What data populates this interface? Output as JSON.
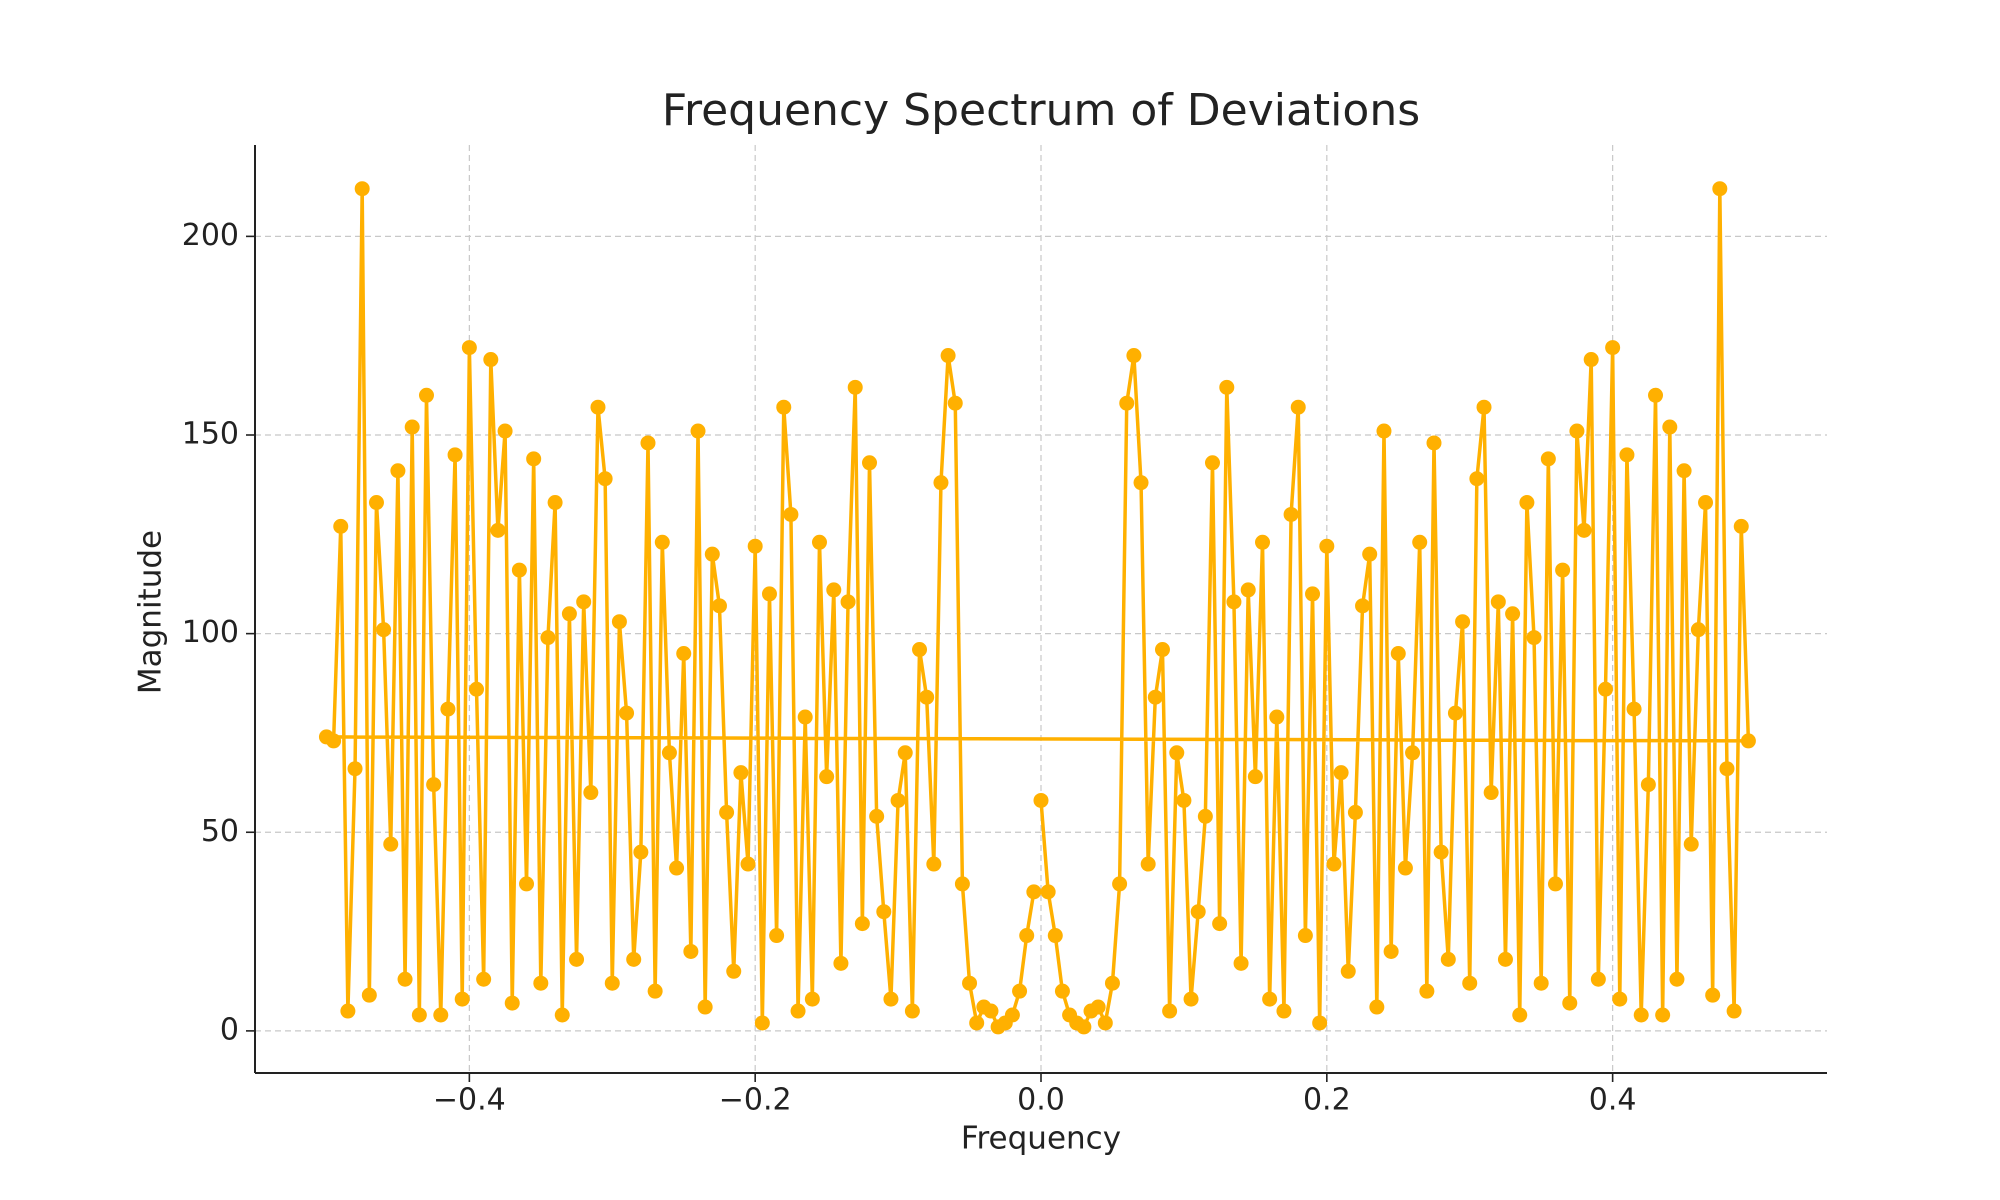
{
  "chart_data": {
    "type": "line",
    "title": "Frequency Spectrum of Deviations",
    "x_label": "Frequency",
    "y_label": "Magnitude",
    "series": [
      {
        "name": "Magnitude",
        "color": "#ffb000",
        "x": [
          0,
          0.005,
          0.01,
          0.015,
          0.02,
          0.025,
          0.03,
          0.035,
          0.04,
          0.045,
          0.05,
          0.055,
          0.06,
          0.065,
          0.07,
          0.075,
          0.08,
          0.085,
          0.09,
          0.095,
          0.1,
          0.105,
          0.11,
          0.115,
          0.12,
          0.125,
          0.13,
          0.135,
          0.14,
          0.145,
          0.15,
          0.155,
          0.16,
          0.165,
          0.17,
          0.175,
          0.18,
          0.185,
          0.19,
          0.195,
          0.2,
          0.205,
          0.21,
          0.215,
          0.22,
          0.225,
          0.23,
          0.235,
          0.24,
          0.245,
          0.25,
          0.255,
          0.26,
          0.265,
          0.27,
          0.275,
          0.28,
          0.285,
          0.29,
          0.295,
          0.3,
          0.305,
          0.31,
          0.315,
          0.32,
          0.325,
          0.33,
          0.335,
          0.34,
          0.345,
          0.35,
          0.355,
          0.36,
          0.365,
          0.37,
          0.375,
          0.38,
          0.385,
          0.39,
          0.395,
          0.4,
          0.405,
          0.41,
          0.415,
          0.42,
          0.425,
          0.43,
          0.435,
          0.44,
          0.445,
          0.45,
          0.455,
          0.46,
          0.465,
          0.47,
          0.475,
          0.48,
          0.485,
          0.49,
          0.495,
          -0.5,
          -0.495,
          -0.49,
          -0.485,
          -0.48,
          -0.475,
          -0.47,
          -0.465,
          -0.46,
          -0.455,
          -0.45,
          -0.445,
          -0.44,
          -0.435,
          -0.43,
          -0.425,
          -0.42,
          -0.415,
          -0.41,
          -0.405,
          -0.4,
          -0.395,
          -0.39,
          -0.385,
          -0.38,
          -0.375,
          -0.37,
          -0.365,
          -0.36,
          -0.355,
          -0.35,
          -0.345,
          -0.34,
          -0.335,
          -0.33,
          -0.325,
          -0.32,
          -0.315,
          -0.31,
          -0.305,
          -0.3,
          -0.295,
          -0.29,
          -0.285,
          -0.28,
          -0.275,
          -0.27,
          -0.265,
          -0.26,
          -0.255,
          -0.25,
          -0.245,
          -0.24,
          -0.235,
          -0.23,
          -0.225,
          -0.22,
          -0.215,
          -0.21,
          -0.205,
          -0.2,
          -0.195,
          -0.19,
          -0.185,
          -0.18,
          -0.175,
          -0.17,
          -0.165,
          -0.16,
          -0.155,
          -0.15,
          -0.145,
          -0.14,
          -0.135,
          -0.13,
          -0.125,
          -0.12,
          -0.115,
          -0.11,
          -0.105,
          -0.1,
          -0.095,
          -0.09,
          -0.085,
          -0.08,
          -0.075,
          -0.07,
          -0.065,
          -0.06,
          -0.055,
          -0.05,
          -0.045,
          -0.04,
          -0.035,
          -0.03,
          -0.025,
          -0.02,
          -0.015,
          -0.01,
          -0.005
        ],
        "values": [
          58,
          35,
          24,
          10,
          4,
          2,
          1,
          5,
          6,
          2,
          12,
          37,
          158,
          170,
          138,
          42,
          84,
          96,
          5,
          70,
          58,
          8,
          30,
          54,
          143,
          27,
          162,
          108,
          17,
          111,
          64,
          123,
          8,
          79,
          5,
          130,
          157,
          24,
          110,
          2,
          122,
          42,
          65,
          15,
          55,
          107,
          120,
          6,
          151,
          20,
          95,
          41,
          70,
          123,
          10,
          148,
          45,
          18,
          80,
          103,
          12,
          139,
          157,
          60,
          108,
          18,
          105,
          4,
          133,
          99,
          12,
          144,
          37,
          116,
          7,
          151,
          126,
          169,
          13,
          86,
          172,
          8,
          145,
          81,
          4,
          62,
          160,
          4,
          152,
          13,
          141,
          47,
          101,
          133,
          9,
          212,
          66,
          5,
          127,
          73,
          74,
          73,
          127,
          5,
          66,
          212,
          9,
          133,
          101,
          47,
          141,
          13,
          152,
          4,
          160,
          62,
          4,
          81,
          145,
          8,
          172,
          86,
          13,
          169,
          126,
          151,
          7,
          116,
          37,
          144,
          12,
          99,
          133,
          4,
          105,
          18,
          108,
          60,
          157,
          139,
          12,
          103,
          80,
          18,
          45,
          148,
          10,
          123,
          70,
          41,
          95,
          20,
          151,
          6,
          120,
          107,
          55,
          15,
          65,
          42,
          122,
          2,
          110,
          24,
          157,
          130,
          5,
          79,
          8,
          123,
          64,
          111,
          17,
          108,
          162,
          27,
          143,
          54,
          30,
          8,
          58,
          70,
          5,
          96,
          84,
          42,
          138,
          170,
          158,
          37,
          12,
          2,
          6,
          5,
          1,
          2,
          4,
          10,
          24,
          35
        ]
      }
    ],
    "xlim": [
      -0.55,
      0.55
    ],
    "ylim": [
      -10.6,
      223
    ],
    "xticks": [
      {
        "value": -0.4,
        "label": "−0.4"
      },
      {
        "value": -0.2,
        "label": "−0.2"
      },
      {
        "value": 0,
        "label": "0.0"
      },
      0.2,
      0.4
    ],
    "yticks": [
      0,
      50,
      100,
      150,
      200
    ],
    "grid": true
  }
}
